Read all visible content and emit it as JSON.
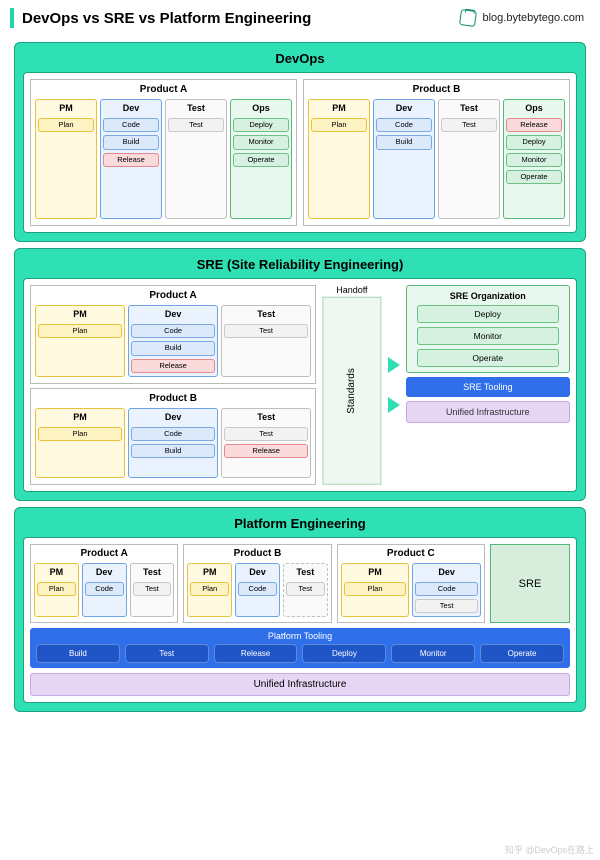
{
  "header": {
    "title": "DevOps vs SRE vs Platform Engineering",
    "brand": "blog.bytebytego.com",
    "accent_bar_color": "#21d6ac"
  },
  "colors": {
    "panel_bg": "#2fe0b5",
    "panel_border": "#1aa37d",
    "pm": {
      "border": "#e6c33b",
      "bg": "#fff9df",
      "chip_border": "#e6c33b",
      "chip_bg": "#fdf2c1"
    },
    "dev": {
      "border": "#6fa4e6",
      "bg": "#eaf2fd",
      "chip_border": "#7aa9e2",
      "chip_bg": "#dbe9fb"
    },
    "test": {
      "border": "#bfbfbf",
      "bg": "#fafafa",
      "chip_border": "#c8c8c8",
      "chip_bg": "#f2f2f2"
    },
    "ops": {
      "border": "#55b877",
      "bg": "#e9f8ee",
      "chip_border": "#6cc189",
      "chip_bg": "#d6f1df"
    },
    "release": {
      "chip_border": "#e48a8a",
      "chip_bg": "#fadada"
    },
    "sre_box": {
      "border": "#55b877",
      "bg": "#e9f8ee"
    },
    "sre_tooling": {
      "bg": "#2f6fea",
      "text": "#ffffff"
    },
    "sre_infra": {
      "bg": "#e6d5f3",
      "text": "#333333",
      "border": "#c8a8e6"
    },
    "handoff": {
      "bg": "#f4f4f4",
      "border": "#bfbfbf"
    },
    "standards": {
      "bg": "#eef8f1",
      "border": "#a6d8b6"
    },
    "arrow": "#2fe0b5",
    "platform_bar": {
      "bg": "#2f6fea",
      "chip_bg": "#1f55c7",
      "text": "#ffffff"
    },
    "unified_bg": "#e6d5f3",
    "sre_block_bg": "#d8eedd"
  },
  "devops": {
    "title": "DevOps",
    "products": [
      {
        "name": "Product A",
        "roles": [
          {
            "role": "PM",
            "style": "pm",
            "chips": [
              {
                "t": "Plan"
              }
            ]
          },
          {
            "role": "Dev",
            "style": "dev",
            "chips": [
              {
                "t": "Code"
              },
              {
                "t": "Build"
              },
              {
                "t": "Release",
                "style": "release"
              }
            ]
          },
          {
            "role": "Test",
            "style": "test",
            "chips": [
              {
                "t": "Test"
              }
            ]
          },
          {
            "role": "Ops",
            "style": "ops",
            "chips": [
              {
                "t": "Deploy"
              },
              {
                "t": "Monitor"
              },
              {
                "t": "Operate"
              }
            ]
          }
        ]
      },
      {
        "name": "Product B",
        "roles": [
          {
            "role": "PM",
            "style": "pm",
            "chips": [
              {
                "t": "Plan"
              }
            ]
          },
          {
            "role": "Dev",
            "style": "dev",
            "chips": [
              {
                "t": "Code"
              },
              {
                "t": "Build"
              }
            ]
          },
          {
            "role": "Test",
            "style": "test",
            "chips": [
              {
                "t": "Test"
              }
            ]
          },
          {
            "role": "Ops",
            "style": "ops",
            "chips": [
              {
                "t": "Release",
                "style": "release"
              },
              {
                "t": "Deploy"
              },
              {
                "t": "Monitor"
              },
              {
                "t": "Operate"
              }
            ]
          }
        ]
      }
    ]
  },
  "sre": {
    "title": "SRE (Site Reliability Engineering)",
    "handoff_label": "Handoff",
    "standards_label": "Standards",
    "products": [
      {
        "name": "Product A",
        "roles": [
          {
            "role": "PM",
            "style": "pm",
            "chips": [
              {
                "t": "Plan"
              }
            ]
          },
          {
            "role": "Dev",
            "style": "dev",
            "chips": [
              {
                "t": "Code"
              },
              {
                "t": "Build"
              },
              {
                "t": "Release",
                "style": "release"
              }
            ]
          },
          {
            "role": "Test",
            "style": "test",
            "chips": [
              {
                "t": "Test"
              }
            ]
          }
        ]
      },
      {
        "name": "Product B",
        "roles": [
          {
            "role": "PM",
            "style": "pm",
            "chips": [
              {
                "t": "Plan"
              }
            ]
          },
          {
            "role": "Dev",
            "style": "dev",
            "chips": [
              {
                "t": "Code"
              },
              {
                "t": "Build"
              }
            ]
          },
          {
            "role": "Test",
            "style": "test",
            "chips": [
              {
                "t": "Test"
              },
              {
                "t": "Release",
                "style": "release"
              }
            ]
          }
        ]
      }
    ],
    "org": {
      "title": "SRE Organization",
      "chips": [
        {
          "t": "Deploy"
        },
        {
          "t": "Monitor"
        },
        {
          "t": "Operate"
        }
      ]
    },
    "tooling_label": "SRE Tooling",
    "infra_label": "Unified Infrastructure"
  },
  "pe": {
    "title": "Platform Engineering",
    "products": [
      {
        "name": "Product A",
        "roles": [
          {
            "role": "PM",
            "style": "pm",
            "chips": [
              {
                "t": "Plan"
              }
            ]
          },
          {
            "role": "Dev",
            "style": "dev",
            "chips": [
              {
                "t": "Code"
              }
            ]
          },
          {
            "role": "Test",
            "style": "test",
            "chips": [
              {
                "t": "Test"
              }
            ]
          }
        ]
      },
      {
        "name": "Product B",
        "roles": [
          {
            "role": "PM",
            "style": "pm",
            "chips": [
              {
                "t": "Plan"
              }
            ]
          },
          {
            "role": "Dev",
            "style": "dev",
            "chips": [
              {
                "t": "Code"
              }
            ]
          },
          {
            "role": "Test",
            "style": "test",
            "dashed": true,
            "chips": [
              {
                "t": "Test"
              }
            ]
          }
        ]
      },
      {
        "name": "Product C",
        "roles": [
          {
            "role": "PM",
            "style": "pm",
            "chips": [
              {
                "t": "Plan"
              }
            ]
          },
          {
            "role": "Dev",
            "style": "dev",
            "chips": [
              {
                "t": "Code"
              },
              {
                "t": "Test",
                "style": "test"
              }
            ]
          }
        ]
      }
    ],
    "sre_label": "SRE",
    "platform_tooling": {
      "title": "Platform Tooling",
      "chips": [
        "Build",
        "Test",
        "Release",
        "Deploy",
        "Monitor",
        "Operate"
      ]
    },
    "unified_label": "Unified Infrastructure"
  },
  "watermark": "知乎 @DevOps在路上"
}
